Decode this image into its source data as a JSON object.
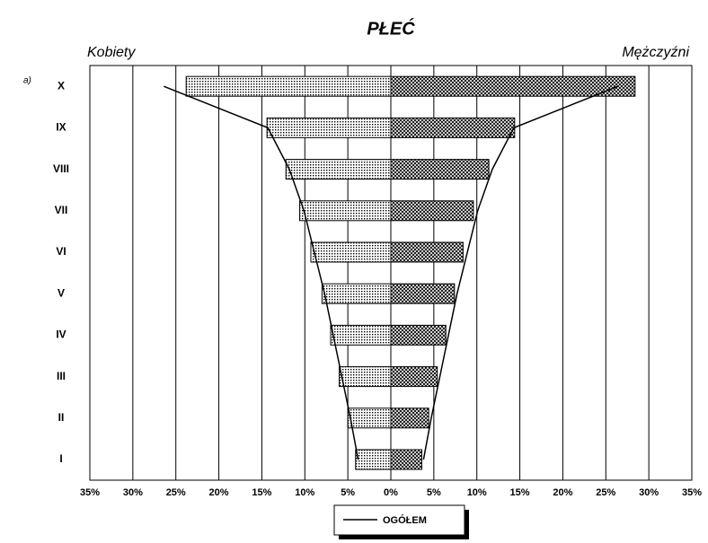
{
  "chart_data": {
    "type": "pyramid",
    "title": "PŁEĆ",
    "panel_label": "a)",
    "left_label": "Kobiety",
    "right_label": "Mężczyźni",
    "categories": [
      "I",
      "II",
      "III",
      "IV",
      "V",
      "VI",
      "VII",
      "VIII",
      "IX",
      "X"
    ],
    "series": [
      {
        "name": "Kobiety",
        "side": "left",
        "pattern": "dots",
        "values": [
          4.1,
          5.0,
          6.0,
          7.0,
          8.0,
          9.3,
          10.6,
          12.2,
          14.4,
          23.8
        ]
      },
      {
        "name": "Mężczyźni",
        "side": "right",
        "pattern": "crosshatch",
        "values": [
          3.6,
          4.4,
          5.4,
          6.4,
          7.4,
          8.4,
          9.6,
          11.4,
          14.4,
          28.4
        ]
      },
      {
        "name": "OGÓŁEM",
        "type": "line",
        "color": "#000",
        "values": [
          3.8,
          4.7,
          5.7,
          6.7,
          7.7,
          8.9,
          10.1,
          11.8,
          14.3,
          26.4
        ]
      }
    ],
    "xlim": [
      0,
      35
    ],
    "xticks": [
      {
        "value": 0,
        "label": "0%"
      },
      {
        "value": 5,
        "label": "5%"
      },
      {
        "value": 10,
        "label": "10%"
      },
      {
        "value": 15,
        "label": "15%"
      },
      {
        "value": 20,
        "label": "20%"
      },
      {
        "value": 25,
        "label": "25%"
      },
      {
        "value": 30,
        "label": "30%"
      },
      {
        "value": 35,
        "label": "35%"
      }
    ],
    "grid": true
  }
}
